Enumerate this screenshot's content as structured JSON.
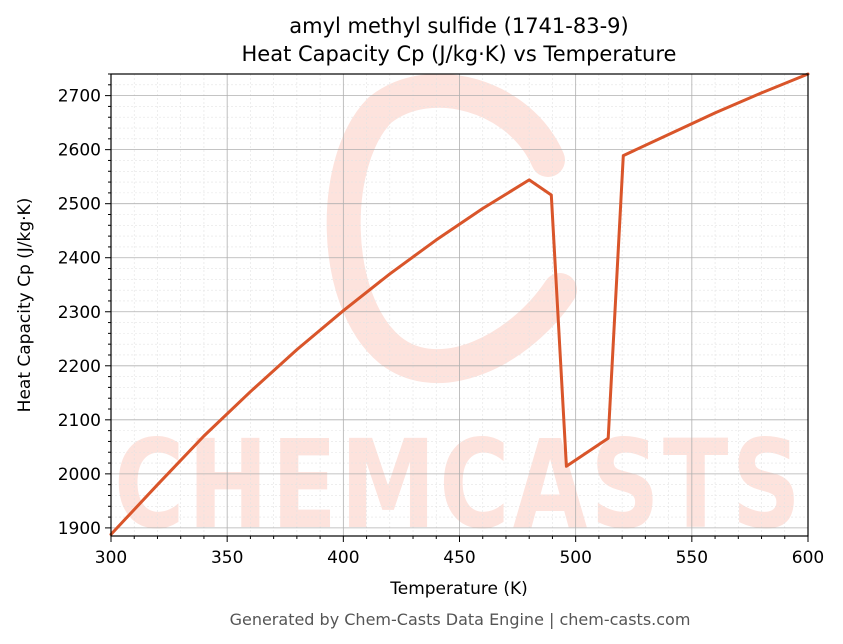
{
  "chart_data": {
    "type": "line",
    "title": "amyl methyl sulfide (1741-83-9)",
    "subtitle": "Heat Capacity Cp (J/kg·K) vs Temperature",
    "xlabel": "Temperature (K)",
    "ylabel": "Heat Capacity Cp (J/kg·K)",
    "xlim": [
      300,
      600
    ],
    "ylim": [
      1885,
      2740
    ],
    "x_ticks": [
      300,
      350,
      400,
      450,
      500,
      550,
      600
    ],
    "y_ticks": [
      1900,
      2000,
      2100,
      2200,
      2300,
      2400,
      2500,
      2600,
      2700
    ],
    "grid": true,
    "legend": "none",
    "colors": {
      "line": "#d9552a",
      "watermark": "#fde3dd",
      "grid_major": "#b0b0b0",
      "grid_minor": "#e3e3e3"
    },
    "series": [
      {
        "x": [
          300,
          320,
          340,
          360,
          380,
          400,
          420,
          440,
          460,
          480,
          489.5,
          496,
          514,
          520.5,
          540,
          560,
          580,
          600
        ],
        "values": [
          1888,
          1980,
          2070,
          2152,
          2230,
          2302,
          2370,
          2433,
          2491,
          2544,
          2516,
          2014,
          2066,
          2589,
          2628,
          2668,
          2705,
          2740
        ]
      }
    ]
  },
  "watermark": {
    "text": "CHEMCASTS"
  },
  "footer": "Generated by Chem-Casts Data Engine | chem-casts.com"
}
